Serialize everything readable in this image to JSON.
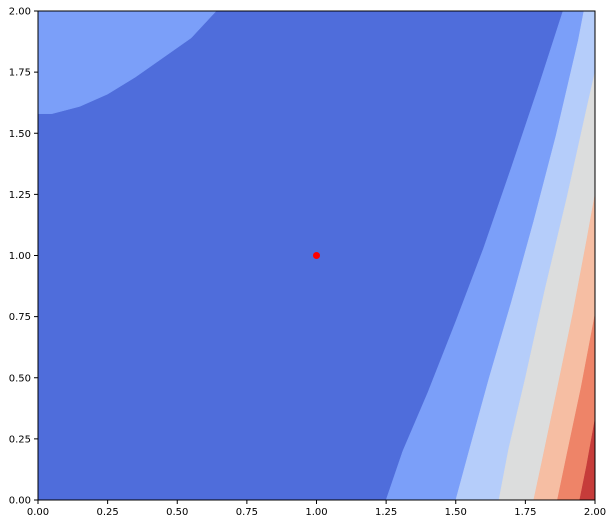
{
  "chart_data": {
    "type": "contourf",
    "title": "",
    "xlabel": "",
    "ylabel": "",
    "xlim": [
      0,
      2
    ],
    "ylim": [
      0,
      2
    ],
    "grid": false,
    "legend": "none",
    "colormap": "coolwarm",
    "x_ticks": [
      "0.00",
      "0.25",
      "0.50",
      "0.75",
      "1.00",
      "1.25",
      "1.50",
      "1.75",
      "2.00"
    ],
    "y_ticks": [
      "0.00",
      "0.25",
      "0.50",
      "0.75",
      "1.00",
      "1.25",
      "1.50",
      "1.75",
      "2.00"
    ],
    "level_colors": [
      "#7b9ff9",
      "#4f6ddb",
      "#7b9ff9",
      "#b5cdfa",
      "#dcdddd",
      "#f6bea3",
      "#ee8468",
      "#c63c3a"
    ],
    "regions": [
      {
        "name": "top-left band",
        "color": "#7b9ff9",
        "boundary": [
          [
            0.0,
            2.0
          ],
          [
            0.0,
            1.58
          ],
          [
            0.05,
            1.58
          ],
          [
            0.15,
            1.61
          ],
          [
            0.25,
            1.66
          ],
          [
            0.35,
            1.73
          ],
          [
            0.45,
            1.81
          ],
          [
            0.55,
            1.89
          ],
          [
            0.64,
            2.0
          ]
        ]
      },
      {
        "name": "band-1",
        "color": "#7b9ff9",
        "boundary": [
          [
            1.25,
            0.0
          ],
          [
            1.5,
            0.0
          ],
          [
            1.55,
            0.21
          ],
          [
            1.62,
            0.5
          ],
          [
            1.7,
            0.81
          ],
          [
            1.78,
            1.14
          ],
          [
            1.86,
            1.49
          ],
          [
            1.94,
            1.88
          ],
          [
            1.96,
            2.0
          ],
          [
            1.885,
            2.0
          ],
          [
            1.8,
            1.7
          ],
          [
            1.7,
            1.36
          ],
          [
            1.6,
            1.03
          ],
          [
            1.5,
            0.73
          ],
          [
            1.4,
            0.44
          ],
          [
            1.31,
            0.2
          ]
        ]
      },
      {
        "name": "band-2",
        "color": "#b5cdfa",
        "boundary": [
          [
            1.5,
            0.0
          ],
          [
            1.655,
            0.0
          ],
          [
            1.69,
            0.21
          ],
          [
            1.75,
            0.5
          ],
          [
            1.82,
            0.86
          ],
          [
            1.9,
            1.24
          ],
          [
            1.97,
            1.6
          ],
          [
            2.0,
            1.75
          ],
          [
            2.0,
            2.0
          ],
          [
            1.96,
            2.0
          ],
          [
            1.94,
            1.88
          ],
          [
            1.86,
            1.49
          ],
          [
            1.78,
            1.14
          ],
          [
            1.7,
            0.81
          ],
          [
            1.62,
            0.5
          ],
          [
            1.55,
            0.21
          ]
        ]
      },
      {
        "name": "band-3",
        "color": "#dcdddd",
        "boundary": [
          [
            1.655,
            0.0
          ],
          [
            1.78,
            0.0
          ],
          [
            1.81,
            0.16
          ],
          [
            1.86,
            0.43
          ],
          [
            1.92,
            0.76
          ],
          [
            1.97,
            1.06
          ],
          [
            2.0,
            1.25
          ],
          [
            2.0,
            1.75
          ],
          [
            1.97,
            1.6
          ],
          [
            1.9,
            1.24
          ],
          [
            1.82,
            0.86
          ],
          [
            1.75,
            0.5
          ],
          [
            1.69,
            0.21
          ]
        ]
      },
      {
        "name": "band-4",
        "color": "#f6bea3",
        "boundary": [
          [
            1.78,
            0.0
          ],
          [
            1.865,
            0.0
          ],
          [
            1.9,
            0.19
          ],
          [
            1.95,
            0.46
          ],
          [
            2.0,
            0.76
          ],
          [
            2.0,
            1.25
          ],
          [
            1.97,
            1.06
          ],
          [
            1.92,
            0.76
          ],
          [
            1.86,
            0.43
          ],
          [
            1.81,
            0.16
          ]
        ]
      },
      {
        "name": "band-5",
        "color": "#ee8468",
        "boundary": [
          [
            1.865,
            0.0
          ],
          [
            1.945,
            0.0
          ],
          [
            1.97,
            0.14
          ],
          [
            2.0,
            0.33
          ],
          [
            2.0,
            0.76
          ],
          [
            1.95,
            0.46
          ],
          [
            1.9,
            0.19
          ]
        ]
      },
      {
        "name": "band-6",
        "color": "#c63c3a",
        "boundary": [
          [
            1.945,
            0.0
          ],
          [
            2.0,
            0.0
          ],
          [
            2.0,
            0.33
          ],
          [
            1.97,
            0.14
          ]
        ]
      }
    ],
    "points": [
      {
        "x": 1.0,
        "y": 1.0,
        "color": "#ff0000"
      }
    ]
  }
}
